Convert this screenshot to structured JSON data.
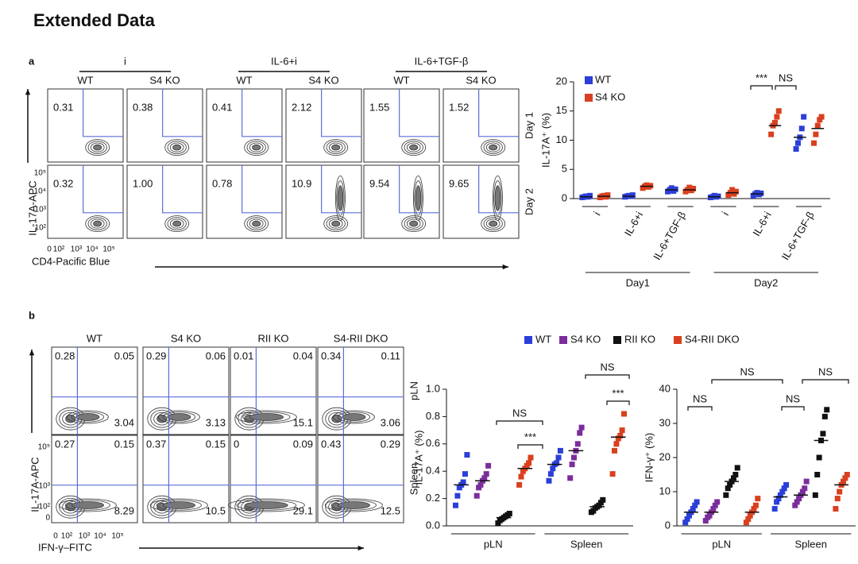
{
  "title": "Extended Data",
  "panel_a": {
    "label": "a",
    "groups": [
      "i",
      "IL-6+i",
      "IL-6+TGF-β"
    ],
    "columns": [
      "WT",
      "S4 KO",
      "WT",
      "S4 KO",
      "WT",
      "S4 KO"
    ],
    "rows": [
      "Day 1",
      "Day 2"
    ],
    "values": [
      [
        "0.31",
        "0.38",
        "0.41",
        "2.12",
        "1.55",
        "1.52"
      ],
      [
        "0.32",
        "1.00",
        "0.78",
        "10.9",
        "9.54",
        "9.65"
      ]
    ],
    "y_label": "IL-17A-APC",
    "x_label": "CD4-Pacific Blue",
    "y_ticks": [
      "10⁵",
      "10⁴",
      "10³",
      "10²"
    ],
    "x_ticks": [
      "0",
      "10²",
      "10³",
      "10⁴",
      "10⁵"
    ]
  },
  "panel_b": {
    "label": "b",
    "columns": [
      "WT",
      "S4 KO",
      "RII KO",
      "S4-RII DKO"
    ],
    "rows": [
      "pLN",
      "Spleen"
    ],
    "values": [
      [
        [
          "0.28",
          "0.05",
          "3.04"
        ],
        [
          "0.29",
          "0.06",
          "3.13"
        ],
        [
          "0.01",
          "0.04",
          "15.1"
        ],
        [
          "0.34",
          "0.11",
          "3.06"
        ]
      ],
      [
        [
          "0.27",
          "0.15",
          "8.29"
        ],
        [
          "0.37",
          "0.15",
          "10.5"
        ],
        [
          "0",
          "0.09",
          "29.1"
        ],
        [
          "0.43",
          "0.29",
          "12.5"
        ]
      ]
    ],
    "y_label": "IL-17A-APC",
    "x_label": "IFN-γ–FITC",
    "y_ticks": [
      "10⁵",
      "10³",
      "10²",
      "0"
    ],
    "x_ticks": [
      "0",
      "10²",
      "10³",
      "10⁴",
      "10⁵"
    ]
  },
  "chart_data": [
    {
      "type": "strip",
      "ylabel": "IL-17A⁺ (%)",
      "legend": "top-left",
      "categories": [
        "i",
        "IL-6+i",
        "IL-6+TGF-β",
        "i",
        "IL-6+i",
        "IL-6+TGF-β"
      ],
      "groups": [
        "Day1",
        "Day2"
      ],
      "ylim": [
        0,
        20
      ],
      "yticks": [
        0,
        5,
        10,
        15,
        20
      ],
      "annotations": [
        "***",
        "NS"
      ],
      "series": [
        {
          "name": "WT",
          "color": "#2b3fd8",
          "values": [
            [
              0.2,
              0.3,
              0.4,
              0.3,
              0.5
            ],
            [
              0.3,
              0.4,
              0.5,
              0.4,
              0.6
            ],
            [
              1.2,
              1.5,
              1.8,
              1.3,
              1.6
            ],
            [
              0.2,
              0.3,
              0.5,
              0.3,
              0.4
            ],
            [
              0.5,
              0.8,
              1.0,
              0.7,
              0.9
            ],
            [
              8.5,
              9.5,
              10.5,
              12,
              14
            ]
          ],
          "means": [
            0.3,
            0.4,
            1.5,
            0.3,
            0.8,
            10.5
          ]
        },
        {
          "name": "S4 KO",
          "color": "#d9401f",
          "values": [
            [
              0.2,
              0.4,
              0.5,
              0.3,
              0.6
            ],
            [
              1.8,
              2.1,
              2.3,
              2.0,
              2.2
            ],
            [
              1.2,
              1.5,
              1.9,
              1.4,
              1.7
            ],
            [
              0.6,
              1.0,
              1.5,
              0.8,
              1.2
            ],
            [
              11,
              12.5,
              13,
              14,
              15
            ],
            [
              9.5,
              11,
              12.5,
              13.5,
              14
            ]
          ],
          "means": [
            0.4,
            2.1,
            1.5,
            1.0,
            12.5,
            12
          ]
        }
      ]
    },
    {
      "type": "strip",
      "ylabel": "IL-17A⁺ (%)",
      "legend": "top",
      "categories": [
        "pLN",
        "Spleen"
      ],
      "ylim": [
        0,
        1
      ],
      "yticks": [
        {
          "value": 0,
          "label": "0.0"
        },
        0.2,
        0.4,
        0.6,
        0.8,
        {
          "value": 1,
          "label": "1.0"
        }
      ],
      "annotations": [
        "NS",
        "***",
        "NS",
        "***"
      ],
      "series": [
        {
          "name": "WT",
          "color": "#2b3fd8",
          "values": [
            [
              0.15,
              0.22,
              0.28,
              0.3,
              0.32,
              0.38,
              0.52
            ],
            [
              0.33,
              0.38,
              0.42,
              0.45,
              0.46,
              0.5,
              0.55
            ]
          ],
          "means": [
            0.3,
            0.45
          ]
        },
        {
          "name": "S4 KO",
          "color": "#7b2d9b",
          "values": [
            [
              0.22,
              0.28,
              0.3,
              0.33,
              0.35,
              0.38,
              0.44
            ],
            [
              0.35,
              0.45,
              0.5,
              0.55,
              0.6,
              0.68,
              0.72
            ]
          ],
          "means": [
            0.33,
            0.55
          ]
        },
        {
          "name": "RII KO",
          "color": "#111111",
          "values": [
            [
              0.02,
              0.04,
              0.05,
              0.06,
              0.07,
              0.08,
              0.09
            ],
            [
              0.1,
              0.11,
              0.13,
              0.14,
              0.15,
              0.17,
              0.19
            ]
          ],
          "means": [
            0.06,
            0.14
          ]
        },
        {
          "name": "S4-RII DKO",
          "color": "#d9401f",
          "values": [
            [
              0.3,
              0.36,
              0.4,
              0.42,
              0.44,
              0.46,
              0.5
            ],
            [
              0.38,
              0.55,
              0.6,
              0.64,
              0.66,
              0.7,
              0.82
            ]
          ],
          "means": [
            0.42,
            0.65
          ]
        }
      ]
    },
    {
      "type": "strip",
      "ylabel": "IFN-γ⁺ (%)",
      "categories": [
        "pLN",
        "Spleen"
      ],
      "ylim": [
        0,
        40
      ],
      "yticks": [
        0,
        10,
        20,
        30,
        40
      ],
      "annotations": [
        "NS",
        "NS",
        "NS",
        "NS"
      ],
      "series": [
        {
          "color": "#2b3fd8",
          "values": [
            [
              1,
              2,
              3,
              4,
              5,
              6,
              7
            ],
            [
              5,
              7,
              8,
              9,
              10,
              11,
              12
            ]
          ],
          "means": [
            4,
            8.5
          ]
        },
        {
          "color": "#7b2d9b",
          "values": [
            [
              1.5,
              2.5,
              3,
              4,
              5,
              6,
              7
            ],
            [
              6,
              7,
              8,
              9,
              10,
              11,
              13
            ]
          ],
          "means": [
            4,
            9
          ]
        },
        {
          "color": "#111111",
          "values": [
            [
              9,
              11,
              12,
              13,
              14,
              15,
              17
            ],
            [
              9,
              15,
              20,
              25,
              27,
              32,
              34
            ]
          ],
          "means": [
            13,
            25
          ]
        },
        {
          "color": "#d9401f",
          "values": [
            [
              1,
              2,
              3,
              4,
              5,
              6,
              8
            ],
            [
              5,
              8,
              10,
              12,
              13,
              14,
              15
            ]
          ],
          "means": [
            4,
            12
          ]
        }
      ]
    }
  ]
}
